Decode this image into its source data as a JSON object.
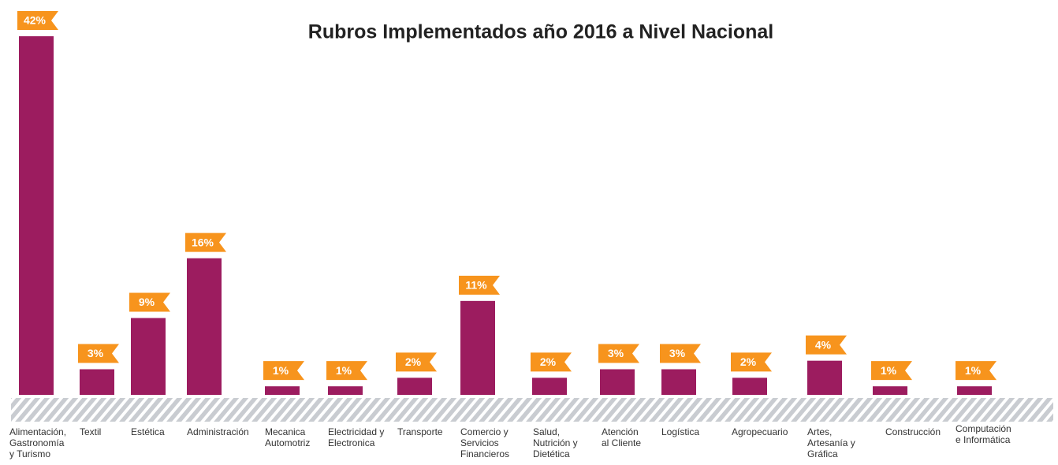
{
  "chart_data": {
    "type": "bar",
    "title": "Rubros Implementados año 2016 a Nivel Nacional",
    "categories": [
      "Alimentación,\nGastronomía\ny Turismo",
      "Textil",
      "Estética",
      "Administración",
      "Mecanica\nAutomotriz",
      "Electricidad y\nElectronica",
      "Transporte",
      "Comercio y\nServicios\nFinancieros",
      "Salud,\nNutrición y\nDietética",
      "Atención\nal Cliente",
      "Logística",
      "Agropecuario",
      "Artes,\nArtesanía y\nGráfica",
      "Construcción",
      "Computación\ne Informática"
    ],
    "values": [
      42,
      3,
      9,
      16,
      1,
      1,
      2,
      11,
      2,
      3,
      3,
      2,
      4,
      1,
      1
    ],
    "value_labels": [
      "42%",
      "3%",
      "9%",
      "16%",
      "1%",
      "1%",
      "2%",
      "11%",
      "2%",
      "3%",
      "3%",
      "2%",
      "4%",
      "1%",
      "1%"
    ],
    "color": "#9c1c5f",
    "label_color": "#f7941d"
  }
}
